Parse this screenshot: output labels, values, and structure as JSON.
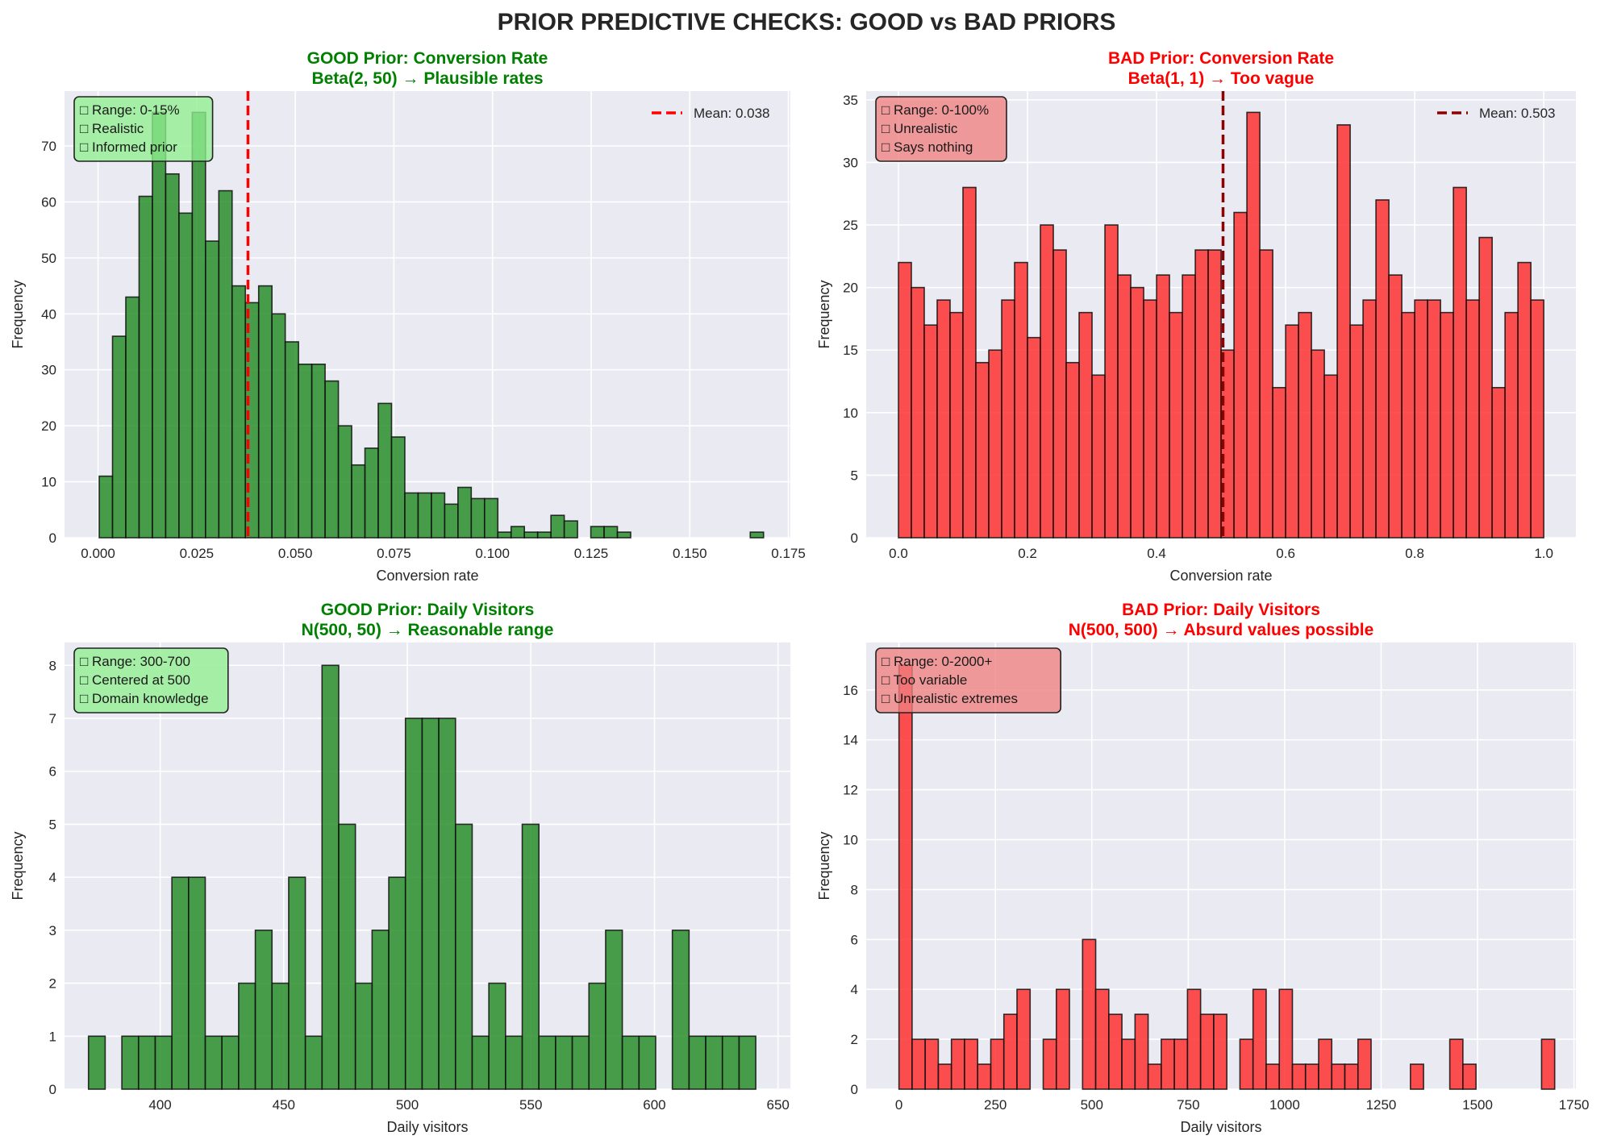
{
  "figure": {
    "title": "PRIOR PREDICTIVE CHECKS: GOOD vs BAD PRIORS",
    "colors": {
      "good": "#008000",
      "bad": "#ff0000",
      "good_bar": "#228B22",
      "bad_bar": "#ff2a2a",
      "good_note_bg": "#90ee90",
      "bad_note_bg": "#f08080",
      "axes_bg": "#eaeaf2",
      "grid": "#ffffff"
    }
  },
  "chart_data": [
    {
      "id": "good-conversion",
      "type": "bar",
      "kind": "good",
      "title_line1": "GOOD Prior: Conversion Rate",
      "title_line2": "Beta(2, 50) → Plausible rates",
      "xlabel": "Conversion rate",
      "ylabel": "Frequency",
      "xlim": [
        -0.0085,
        0.1755
      ],
      "ylim": [
        0,
        79.8
      ],
      "xticks": [
        0.0,
        0.025,
        0.05,
        0.075,
        0.1,
        0.125,
        0.15,
        0.175
      ],
      "xtick_labels": [
        "0.000",
        "0.025",
        "0.050",
        "0.075",
        "0.100",
        "0.125",
        "0.150",
        "0.175"
      ],
      "yticks": [
        0,
        10,
        20,
        30,
        40,
        50,
        60,
        70
      ],
      "ytick_labels": [
        "0",
        "10",
        "20",
        "30",
        "40",
        "50",
        "60",
        "70"
      ],
      "bin_start": 0.0003,
      "bin_end": 0.1687,
      "values": [
        11,
        36,
        43,
        61,
        76,
        65,
        58,
        76,
        53,
        62,
        45,
        42,
        45,
        40,
        35,
        31,
        31,
        28,
        20,
        13,
        16,
        24,
        18,
        8,
        8,
        8,
        6,
        9,
        7,
        7,
        1,
        2,
        1,
        1,
        4,
        3,
        0,
        2,
        2,
        1,
        0,
        0,
        0,
        0,
        0,
        0,
        0,
        0,
        0,
        1
      ],
      "mean_line": {
        "value": 0.038,
        "label": "Mean: 0.038",
        "color": "#ff0000"
      },
      "legend_position": "upper right",
      "note": [
        "□ Range: 0-15%",
        "□ Realistic",
        "□ Informed prior"
      ],
      "grid": true
    },
    {
      "id": "bad-conversion",
      "type": "bar",
      "kind": "bad",
      "title_line1": "BAD Prior: Conversion Rate",
      "title_line2": "Beta(1, 1) → Too vague",
      "xlabel": "Conversion rate",
      "ylabel": "Frequency",
      "xlim": [
        -0.05,
        1.0498
      ],
      "ylim": [
        0,
        35.7
      ],
      "xticks": [
        0.0,
        0.2,
        0.4,
        0.6,
        0.8,
        1.0
      ],
      "xtick_labels": [
        "0.0",
        "0.2",
        "0.4",
        "0.6",
        "0.8",
        "1.0"
      ],
      "yticks": [
        0,
        5,
        10,
        15,
        20,
        25,
        30,
        35
      ],
      "ytick_labels": [
        "0",
        "5",
        "10",
        "15",
        "20",
        "25",
        "30",
        "35"
      ],
      "bin_start": 0.0,
      "bin_end": 1.0,
      "values": [
        22,
        20,
        17,
        19,
        18,
        28,
        14,
        15,
        19,
        22,
        16,
        25,
        23,
        14,
        18,
        13,
        25,
        21,
        20,
        19,
        21,
        18,
        21,
        23,
        23,
        15,
        26,
        34,
        23,
        12,
        17,
        18,
        15,
        13,
        33,
        17,
        19,
        27,
        21,
        18,
        19,
        19,
        18,
        28,
        19,
        24,
        12,
        18,
        22,
        19
      ],
      "mean_line": {
        "value": 0.503,
        "label": "Mean: 0.503",
        "color": "#8b0000"
      },
      "legend_position": "upper right",
      "note": [
        "□ Range: 0-100%",
        "□ Unrealistic",
        "□ Says nothing"
      ],
      "grid": true
    },
    {
      "id": "good-visitors",
      "type": "bar",
      "kind": "good",
      "title_line1": "GOOD Prior: Daily Visitors",
      "title_line2": "N(500, 50) → Reasonable range",
      "xlabel": "Daily visitors",
      "ylabel": "Frequency",
      "xlim": [
        361.3,
        655
      ],
      "ylim": [
        0,
        8.43
      ],
      "xticks": [
        400,
        450,
        500,
        550,
        600,
        650
      ],
      "xtick_labels": [
        "400",
        "450",
        "500",
        "550",
        "600",
        "650"
      ],
      "yticks": [
        0,
        1,
        2,
        3,
        4,
        5,
        6,
        7,
        8
      ],
      "ytick_labels": [
        "0",
        "1",
        "2",
        "3",
        "4",
        "5",
        "6",
        "7",
        "8"
      ],
      "bin_start": 371.0,
      "bin_end": 641.0,
      "values": [
        1,
        0,
        1,
        1,
        1,
        4,
        4,
        1,
        1,
        2,
        3,
        2,
        4,
        1,
        8,
        5,
        2,
        3,
        4,
        7,
        7,
        7,
        5,
        1,
        2,
        1,
        5,
        1,
        1,
        1,
        2,
        3,
        1,
        1,
        0,
        3,
        1,
        1,
        1,
        1
      ],
      "note": [
        "□ Range: 300-700",
        "□ Centered at 500",
        "□ Domain knowledge"
      ],
      "grid": true
    },
    {
      "id": "bad-visitors",
      "type": "bar",
      "kind": "bad",
      "title_line1": "BAD Prior: Daily Visitors",
      "title_line2": "N(500, 500) → Absurd values possible",
      "xlabel": "Daily visitors",
      "ylabel": "Frequency",
      "xlim": [
        -85,
        1755
      ],
      "ylim": [
        0,
        17.9
      ],
      "xticks": [
        0,
        250,
        500,
        750,
        1000,
        1250,
        1500,
        1750
      ],
      "xtick_labels": [
        "0",
        "250",
        "500",
        "750",
        "1000",
        "1250",
        "1500",
        "1750"
      ],
      "yticks": [
        0,
        2,
        4,
        6,
        8,
        10,
        12,
        14,
        16
      ],
      "ytick_labels": [
        "0",
        "2",
        "4",
        "6",
        "8",
        "10",
        "12",
        "14",
        "16"
      ],
      "bin_start": 0,
      "bin_end": 1700,
      "values": [
        17,
        2,
        2,
        1,
        2,
        2,
        1,
        2,
        3,
        4,
        0,
        2,
        4,
        0,
        6,
        4,
        3,
        2,
        3,
        1,
        2,
        2,
        4,
        3,
        3,
        0,
        2,
        4,
        1,
        4,
        1,
        1,
        2,
        1,
        1,
        2,
        0,
        0,
        0,
        1,
        0,
        0,
        2,
        1,
        0,
        0,
        0,
        0,
        0,
        2
      ],
      "note": [
        "□ Range: 0-2000+",
        "□ Too variable",
        "□ Unrealistic extremes"
      ],
      "grid": true
    }
  ]
}
